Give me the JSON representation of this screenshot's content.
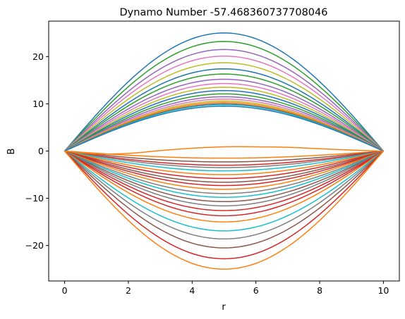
{
  "chart_data": {
    "type": "line",
    "title": "Dynamo Number -57.468360737708046",
    "xlabel": "r",
    "ylabel": "B",
    "xlim": [
      -0.5,
      10.5
    ],
    "ylim": [
      -27.5,
      27.5
    ],
    "xticks": [
      0,
      2,
      4,
      6,
      8,
      10
    ],
    "yticks": [
      -20,
      -10,
      0,
      10,
      20
    ],
    "xtick_labels": [
      "0",
      "2",
      "4",
      "6",
      "8",
      "10"
    ],
    "ytick_labels": [
      "−20",
      "−10",
      "0",
      "10",
      "20"
    ],
    "grid": false,
    "legend": "none",
    "x": [
      0,
      10
    ],
    "curve_shape": "sin(pi*r/10) profiles, fixed at 0 at r=0 and r=10",
    "series": [
      {
        "amplitude": 25.0,
        "color": "#1f77b4"
      },
      {
        "amplitude": 23.2,
        "color": "#2ca02c"
      },
      {
        "amplitude": 21.5,
        "color": "#9467bd"
      },
      {
        "amplitude": 20.1,
        "color": "#e377c2"
      },
      {
        "amplitude": 18.7,
        "color": "#bcbd22"
      },
      {
        "amplitude": 17.4,
        "color": "#1f77b4"
      },
      {
        "amplitude": 16.3,
        "color": "#2ca02c"
      },
      {
        "amplitude": 15.2,
        "color": "#9467bd"
      },
      {
        "amplitude": 14.3,
        "color": "#e377c2"
      },
      {
        "amplitude": 13.5,
        "color": "#bcbd22"
      },
      {
        "amplitude": 12.8,
        "color": "#1f77b4"
      },
      {
        "amplitude": 12.1,
        "color": "#2ca02c"
      },
      {
        "amplitude": 11.5,
        "color": "#9467bd"
      },
      {
        "amplitude": 11.0,
        "color": "#e377c2"
      },
      {
        "amplitude": 10.6,
        "color": "#bcbd22"
      },
      {
        "amplitude": 10.3,
        "color": "#ff7f0e"
      },
      {
        "amplitude": 10.0,
        "color": "#8c564b"
      },
      {
        "amplitude": 9.8,
        "color": "#17becf"
      },
      {
        "amplitude": 9.5,
        "color": "#1f77b4"
      },
      {
        "amplitude": -1.5,
        "color": "#ff7f0e"
      },
      {
        "amplitude": -2.3,
        "color": "#8c564b"
      },
      {
        "amplitude": -3.0,
        "color": "#d62728"
      },
      {
        "amplitude": -3.5,
        "color": "#7f7f7f"
      },
      {
        "amplitude": -4.2,
        "color": "#17becf"
      },
      {
        "amplitude": -5.0,
        "color": "#ff7f0e"
      },
      {
        "amplitude": -5.8,
        "color": "#d62728"
      },
      {
        "amplitude": -6.6,
        "color": "#8c564b"
      },
      {
        "amplitude": -7.3,
        "color": "#d62728"
      },
      {
        "amplitude": -8.1,
        "color": "#ff7f0e"
      },
      {
        "amplitude": -9.0,
        "color": "#7f7f7f"
      },
      {
        "amplitude": -9.8,
        "color": "#17becf"
      },
      {
        "amplitude": -10.7,
        "color": "#8c564b"
      },
      {
        "amplitude": -11.6,
        "color": "#7f7f7f"
      },
      {
        "amplitude": -12.6,
        "color": "#d62728"
      },
      {
        "amplitude": -13.7,
        "color": "#d62728"
      },
      {
        "amplitude": -15.0,
        "color": "#ff7f0e"
      },
      {
        "amplitude": -16.9,
        "color": "#17becf"
      },
      {
        "amplitude": -18.6,
        "color": "#7f7f7f"
      },
      {
        "amplitude": -20.5,
        "color": "#8c564b"
      },
      {
        "amplitude": -22.8,
        "color": "#d62728"
      },
      {
        "amplitude": -25.0,
        "color": "#ff7f0e"
      }
    ],
    "special_series": [
      {
        "name_hint": "upper-flip",
        "color": "#ff7f0e",
        "kind": "sign-change",
        "points_r": [
          0,
          1,
          2,
          3,
          4,
          5,
          6,
          7,
          8,
          9,
          10
        ],
        "points_B": [
          0,
          -0.6,
          -0.5,
          0.1,
          0.6,
          0.9,
          0.9,
          0.8,
          0.5,
          0.2,
          0
        ]
      }
    ]
  }
}
